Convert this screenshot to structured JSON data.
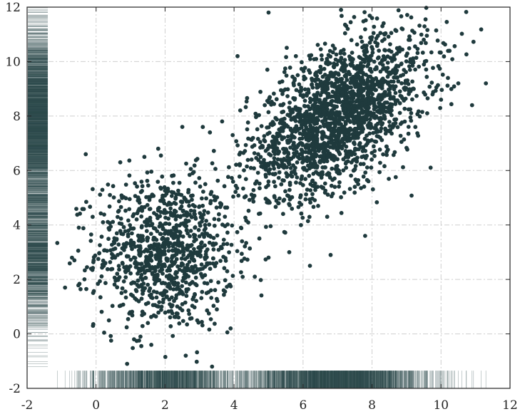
{
  "chart_data": {
    "type": "scatter",
    "title": "",
    "xlabel": "",
    "ylabel": "",
    "xlim": [
      -2,
      12
    ],
    "ylim": [
      -2,
      12
    ],
    "xticks": [
      -2,
      0,
      2,
      4,
      6,
      8,
      10,
      12
    ],
    "yticks": [
      -2,
      0,
      2,
      4,
      6,
      8,
      10,
      12
    ],
    "grid": true,
    "grid_style": "dash-dot",
    "legend": "none",
    "marginal_rugs": [
      "x-bottom",
      "y-left"
    ],
    "colors": {
      "points": "#1f3a3d",
      "rug": "#2e4a4d",
      "grid": "#cfcfcf",
      "axes": "#222222",
      "background": "#ffffff"
    },
    "series": [
      {
        "distribution": "bivariate-normal cluster",
        "center": [
          2,
          3
        ],
        "std": [
          1.0,
          1.4
        ],
        "correlation": 0.0,
        "approx_count": 1000
      },
      {
        "distribution": "bivariate-normal cluster",
        "center": [
          7,
          8
        ],
        "std": [
          1.3,
          1.5
        ],
        "correlation": 0.55,
        "approx_count": 2000
      }
    ],
    "points_sample": [
      [
        -0.9,
        1.7
      ],
      [
        -0.7,
        2.8
      ],
      [
        -0.5,
        3.9
      ],
      [
        -0.3,
        6.6
      ],
      [
        -0.1,
        4.3
      ],
      [
        0.2,
        4.1
      ],
      [
        0.4,
        5.1
      ],
      [
        0.7,
        6.3
      ],
      [
        0.9,
        -1.1
      ],
      [
        1.1,
        -0.2
      ],
      [
        1.4,
        6.5
      ],
      [
        1.5,
        0.4
      ],
      [
        1.6,
        -0.4
      ],
      [
        1.8,
        6.8
      ],
      [
        1.9,
        1.0
      ],
      [
        2.5,
        7.6
      ],
      [
        2.6,
        -0.8
      ],
      [
        2.8,
        5.9
      ],
      [
        3.3,
        7.4
      ],
      [
        3.5,
        0.9
      ],
      [
        3.6,
        4.8
      ],
      [
        3.7,
        1.6
      ],
      [
        3.8,
        2.3
      ],
      [
        3.9,
        0.2
      ],
      [
        4.1,
        10.2
      ],
      [
        4.2,
        3.9
      ],
      [
        4.6,
        2.1
      ],
      [
        4.7,
        6.6
      ],
      [
        5.0,
        11.8
      ],
      [
        5.4,
        8.4
      ],
      [
        5.6,
        3.0
      ],
      [
        5.9,
        8.9
      ],
      [
        6.2,
        2.5
      ],
      [
        6.5,
        9.6
      ],
      [
        6.8,
        2.9
      ],
      [
        7.1,
        11.9
      ],
      [
        7.5,
        5.4
      ],
      [
        7.8,
        3.6
      ],
      [
        8.0,
        11.6
      ],
      [
        8.3,
        11.3
      ],
      [
        8.7,
        9.6
      ],
      [
        9.1,
        10.8
      ],
      [
        9.6,
        8.1
      ],
      [
        10.0,
        8.6
      ],
      [
        10.2,
        9.4
      ],
      [
        10.5,
        9.2
      ],
      [
        10.9,
        8.4
      ],
      [
        11.3,
        9.2
      ]
    ]
  }
}
